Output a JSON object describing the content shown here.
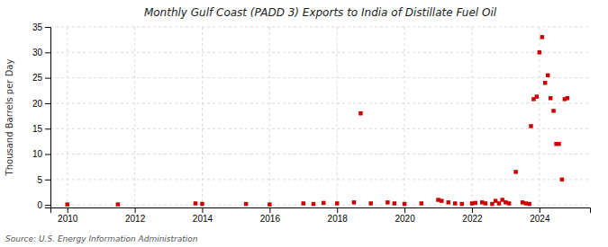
{
  "chart_data": {
    "type": "scatter",
    "title": "Monthly Gulf Coast (PADD 3) Exports to India of Distillate Fuel Oil",
    "ylabel": "Thousand Barrels per Day",
    "annotations": [
      "Source: U.S. Energy Information Administration"
    ],
    "x": [
      2010.0,
      2011.5,
      2013.8,
      2014.0,
      2015.3,
      2016.0,
      2017.0,
      2017.3,
      2017.6,
      2018.0,
      2018.5,
      2018.7,
      2019.0,
      2019.5,
      2019.7,
      2020.0,
      2020.5,
      2021.0,
      2021.1,
      2021.3,
      2021.5,
      2021.7,
      2022.0,
      2022.1,
      2022.3,
      2022.4,
      2022.6,
      2022.7,
      2022.8,
      2022.9,
      2023.0,
      2023.1,
      2023.3,
      2023.5,
      2023.6,
      2023.7,
      2023.75,
      2023.83,
      2023.92,
      2024.0,
      2024.08,
      2024.17,
      2024.25,
      2024.33,
      2024.42,
      2024.5,
      2024.58,
      2024.67,
      2024.75,
      2024.83
    ],
    "values": [
      0.1,
      0.1,
      0.3,
      0.2,
      0.2,
      0.1,
      0.3,
      0.2,
      0.4,
      0.3,
      0.5,
      18.0,
      0.3,
      0.5,
      0.3,
      0.2,
      0.3,
      1.0,
      0.8,
      0.5,
      0.3,
      0.2,
      0.3,
      0.4,
      0.5,
      0.3,
      0.2,
      0.8,
      0.3,
      1.0,
      0.5,
      0.3,
      6.5,
      0.5,
      0.3,
      0.2,
      15.5,
      20.8,
      21.3,
      30.0,
      33.0,
      24.0,
      25.5,
      21.0,
      18.5,
      12.0,
      12.0,
      5.0,
      20.8,
      21.0
    ],
    "color": "#cc0000",
    "marker": "square",
    "xlim": [
      2009.5,
      2025.5
    ],
    "ylim": [
      -0.5,
      35
    ],
    "xticks": [
      2010,
      2012,
      2014,
      2016,
      2018,
      2020,
      2022,
      2024
    ],
    "yticks": [
      0,
      5,
      10,
      15,
      20,
      25,
      30,
      35
    ],
    "grid": true
  }
}
